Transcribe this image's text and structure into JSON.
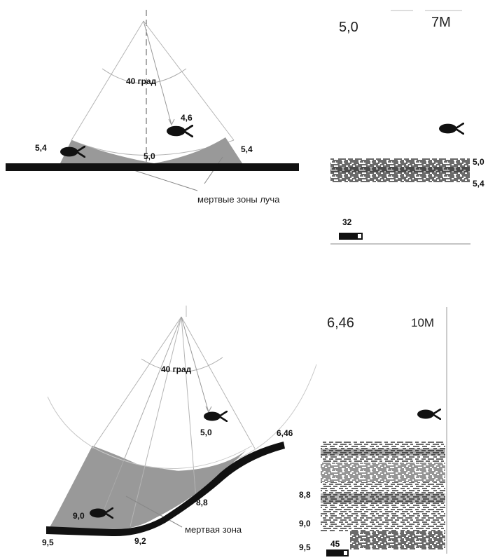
{
  "top": {
    "diagram": {
      "angle_label": "40 град",
      "fish_depth": "4,6",
      "left_edge_depth": "5,4",
      "center_depth": "5,0",
      "right_edge_depth": "5,4",
      "dead_zone_label": "мертвые зоны луча"
    },
    "display": {
      "depth": "5,0",
      "range": "7M",
      "bottom_upper": "5,0",
      "bottom_lower": "5,4",
      "temperature": "32"
    }
  },
  "bottom": {
    "diagram": {
      "angle_label": "40 град",
      "fish_depth": "5,0",
      "right_depth": "6,46",
      "mid_depth": "8,8",
      "fish_left_depth": "9,0",
      "left_depth": "9,5",
      "center_bottom_depth": "9,2",
      "dead_zone_label": "мертвая зона"
    },
    "display": {
      "depth": "6,46",
      "range": "10M",
      "scale_upper": "8,8",
      "scale_mid": "9,0",
      "scale_lower": "9,5",
      "temperature": "45"
    }
  },
  "colors": {
    "ground": "#111111",
    "dead_zone": "#999999",
    "beam_line": "#b5b5b5"
  }
}
